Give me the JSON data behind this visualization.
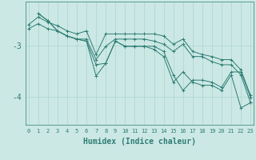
{
  "xlabel": "Humidex (Indice chaleur)",
  "ylabel": "",
  "bg_color": "#cce8e4",
  "grid_color": "#aad4d0",
  "line_color": "#2d7d75",
  "series": [
    {
      "x": [
        0,
        1,
        2,
        3,
        4,
        5,
        6,
        7,
        8,
        9,
        10,
        11,
        12,
        13,
        14,
        15,
        16,
        17,
        18,
        19,
        20,
        21,
        22,
        23
      ],
      "y": [
        -2.6,
        -2.45,
        -2.55,
        -2.62,
        -2.72,
        -2.78,
        -2.72,
        -3.18,
        -2.78,
        -2.78,
        -2.78,
        -2.78,
        -2.78,
        -2.78,
        -2.82,
        -2.98,
        -2.88,
        -3.12,
        -3.18,
        -3.22,
        -3.28,
        -3.28,
        -3.48,
        -3.98
      ]
    },
    {
      "x": [
        1,
        2,
        3,
        4,
        5,
        6,
        7,
        8,
        9,
        10,
        11,
        12,
        13,
        14,
        15,
        16,
        17,
        18,
        19,
        20,
        21,
        22,
        23
      ],
      "y": [
        -2.38,
        -2.52,
        -2.72,
        -2.82,
        -2.88,
        -2.92,
        -3.38,
        -3.35,
        -2.92,
        -3.02,
        -3.02,
        -3.02,
        -3.02,
        -3.12,
        -3.58,
        -3.88,
        -3.68,
        -3.68,
        -3.72,
        -3.82,
        -3.52,
        -3.52,
        -4.02
      ]
    },
    {
      "x": [
        1,
        2,
        3,
        4,
        5,
        6,
        7,
        8,
        9,
        10,
        11,
        12,
        13,
        14,
        15,
        16,
        17,
        18,
        19,
        20,
        21,
        22,
        23
      ],
      "y": [
        -2.38,
        -2.52,
        -2.72,
        -2.82,
        -2.88,
        -2.92,
        -3.6,
        -3.35,
        -2.92,
        -3.02,
        -3.02,
        -3.02,
        -3.08,
        -3.22,
        -3.72,
        -3.52,
        -3.72,
        -3.78,
        -3.78,
        -3.88,
        -3.58,
        -4.22,
        -4.12
      ]
    },
    {
      "x": [
        0,
        1,
        2,
        3,
        4,
        5,
        6,
        7,
        8,
        9,
        10,
        11,
        12,
        13,
        14,
        15,
        16,
        17,
        18,
        19,
        20,
        21,
        22,
        23
      ],
      "y": [
        -2.68,
        -2.58,
        -2.68,
        -2.72,
        -2.82,
        -2.88,
        -2.88,
        -3.28,
        -3.02,
        -2.88,
        -2.88,
        -2.88,
        -2.88,
        -2.92,
        -2.98,
        -3.12,
        -2.98,
        -3.22,
        -3.22,
        -3.32,
        -3.38,
        -3.38,
        -3.58,
        -4.12
      ]
    }
  ],
  "yticks": [
    -4.0,
    -3.0
  ],
  "ytick_labels": [
    "-4",
    "-3"
  ],
  "xticks": [
    0,
    1,
    2,
    3,
    4,
    5,
    6,
    7,
    8,
    9,
    10,
    11,
    12,
    13,
    14,
    15,
    16,
    17,
    18,
    19,
    20,
    21,
    22,
    23
  ],
  "ylim": [
    -4.55,
    -2.15
  ],
  "xlim": [
    -0.3,
    23.3
  ],
  "marker": "+",
  "markersize": 3,
  "linewidth": 0.7,
  "figsize": [
    3.2,
    2.0
  ],
  "dpi": 100
}
